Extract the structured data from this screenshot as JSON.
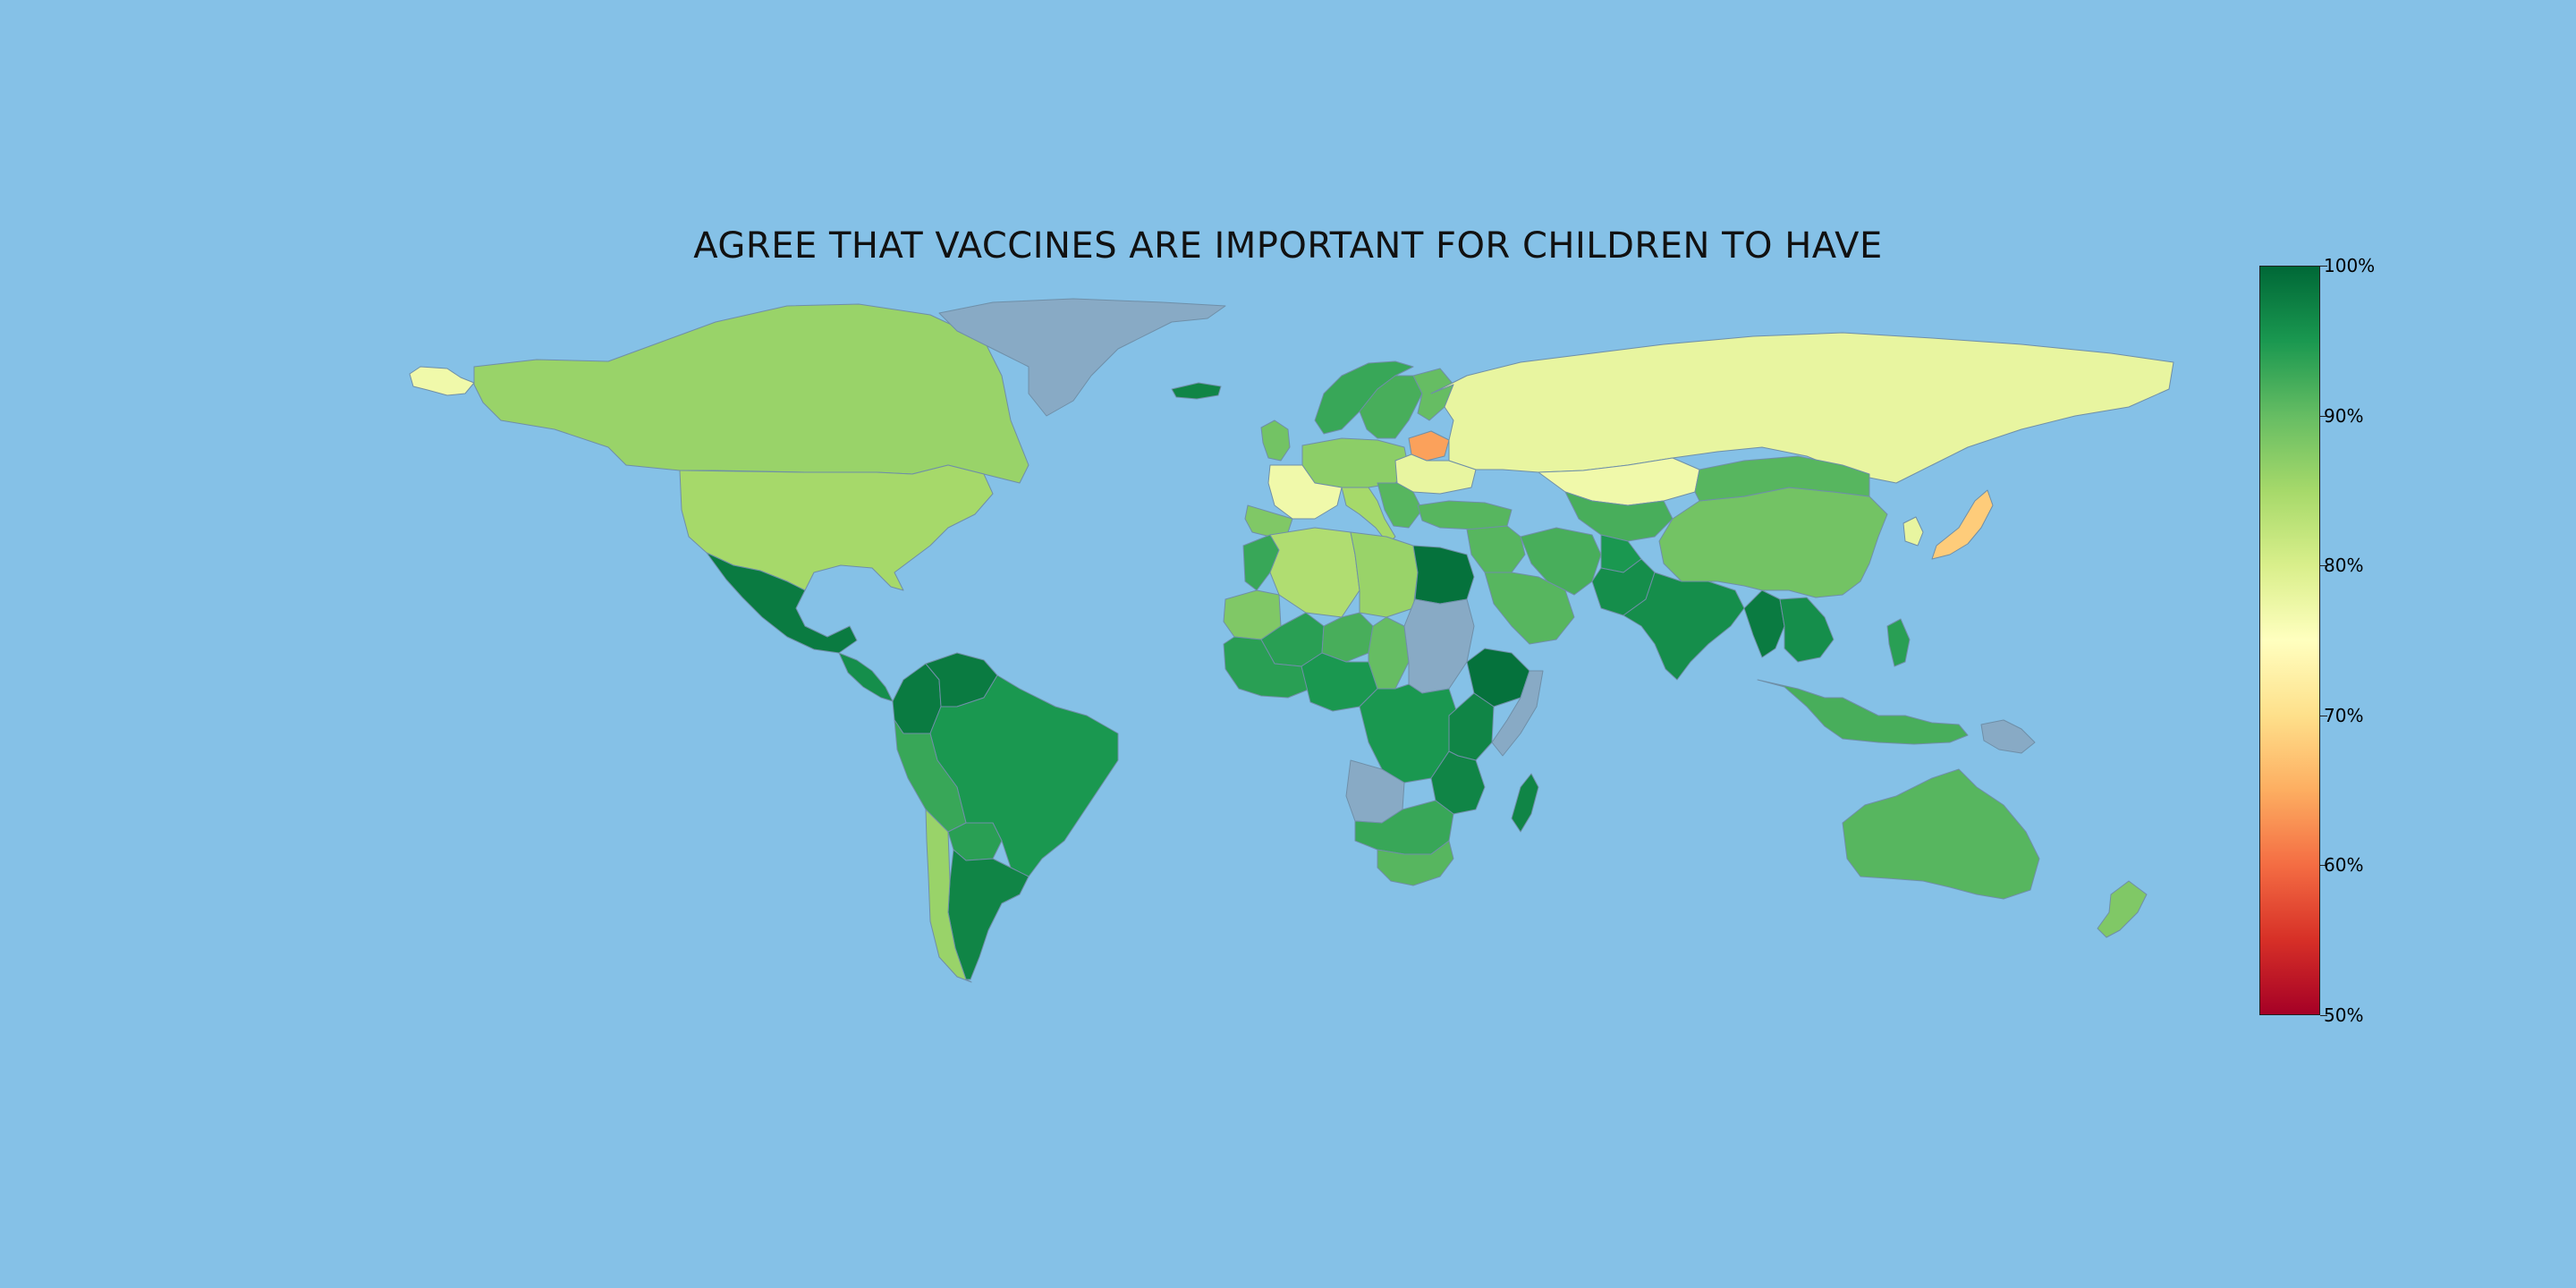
{
  "title": "AGREE THAT VACCINES ARE IMPORTANT FOR CHILDREN TO HAVE",
  "colorbar": {
    "min": 50,
    "max": 100,
    "ticks": [
      "100%",
      "90%",
      "80%",
      "70%",
      "60%",
      "50%"
    ],
    "stops": [
      "#006837",
      "#1a9850",
      "#66bd63",
      "#a6d96a",
      "#d9ef8b",
      "#ffffbf",
      "#fee08b",
      "#fdae61",
      "#f46d43",
      "#d73027",
      "#a50026"
    ]
  },
  "colors": {
    "ocean": "#85c1e7",
    "no_data": "#88aac5"
  },
  "map_data": [
    {
      "region": "Canada",
      "value": 86
    },
    {
      "region": "United States",
      "value": 85
    },
    {
      "region": "Alaska",
      "value": 77
    },
    {
      "region": "Greenland",
      "value": null
    },
    {
      "region": "Iceland",
      "value": 97
    },
    {
      "region": "Mexico",
      "value": 98
    },
    {
      "region": "Central America",
      "value": 96
    },
    {
      "region": "Colombia",
      "value": 98
    },
    {
      "region": "Venezuela",
      "value": 98
    },
    {
      "region": "Brazil",
      "value": 95
    },
    {
      "region": "Peru",
      "value": 93
    },
    {
      "region": "Bolivia",
      "value": 94
    },
    {
      "region": "Argentina",
      "value": 97
    },
    {
      "region": "Chile",
      "value": 86
    },
    {
      "region": "Norway",
      "value": 93
    },
    {
      "region": "Sweden",
      "value": 92
    },
    {
      "region": "Finland",
      "value": 90
    },
    {
      "region": "United Kingdom",
      "value": 89
    },
    {
      "region": "Western Europe",
      "value": 87
    },
    {
      "region": "France",
      "value": 77
    },
    {
      "region": "Iberia",
      "value": 88
    },
    {
      "region": "Italy",
      "value": 85
    },
    {
      "region": "Belarus",
      "value": 64
    },
    {
      "region": "Ukraine",
      "value": 78
    },
    {
      "region": "Balkans",
      "value": 91
    },
    {
      "region": "Russia",
      "value": 78
    },
    {
      "region": "Kazakhstan",
      "value": 77
    },
    {
      "region": "Central Asia",
      "value": 92
    },
    {
      "region": "Turkey",
      "value": 91
    },
    {
      "region": "Middle East",
      "value": 91
    },
    {
      "region": "Saudi Arabia",
      "value": 91
    },
    {
      "region": "Iran",
      "value": 92
    },
    {
      "region": "Afghanistan",
      "value": 95
    },
    {
      "region": "Pakistan",
      "value": 96
    },
    {
      "region": "India",
      "value": 96
    },
    {
      "region": "Myanmar",
      "value": 98
    },
    {
      "region": "Southeast Asia",
      "value": 96
    },
    {
      "region": "China",
      "value": 89
    },
    {
      "region": "Mongolia",
      "value": 91
    },
    {
      "region": "Korea",
      "value": 78
    },
    {
      "region": "Japan",
      "value": 68
    },
    {
      "region": "Philippines",
      "value": 94
    },
    {
      "region": "Indonesia",
      "value": 92
    },
    {
      "region": "Papua New Guinea",
      "value": null
    },
    {
      "region": "Australia",
      "value": 91
    },
    {
      "region": "New Zealand",
      "value": 88
    },
    {
      "region": "Morocco",
      "value": 93
    },
    {
      "region": "Algeria",
      "value": 84
    },
    {
      "region": "Libya",
      "value": 86
    },
    {
      "region": "Egypt",
      "value": 99
    },
    {
      "region": "Mauritania",
      "value": 88
    },
    {
      "region": "Mali",
      "value": 94
    },
    {
      "region": "Niger",
      "value": 92
    },
    {
      "region": "Chad",
      "value": 90
    },
    {
      "region": "Sudan",
      "value": null
    },
    {
      "region": "Ethiopia",
      "value": 99
    },
    {
      "region": "Somalia",
      "value": null
    },
    {
      "region": "West Africa",
      "value": 94
    },
    {
      "region": "Nigeria",
      "value": 95
    },
    {
      "region": "Central Africa",
      "value": 95
    },
    {
      "region": "Kenya",
      "value": 97
    },
    {
      "region": "Tanzania",
      "value": 97
    },
    {
      "region": "Angola",
      "value": null
    },
    {
      "region": "Southern Africa",
      "value": 93
    },
    {
      "region": "South Africa",
      "value": 91
    },
    {
      "region": "Madagascar",
      "value": 97
    }
  ]
}
